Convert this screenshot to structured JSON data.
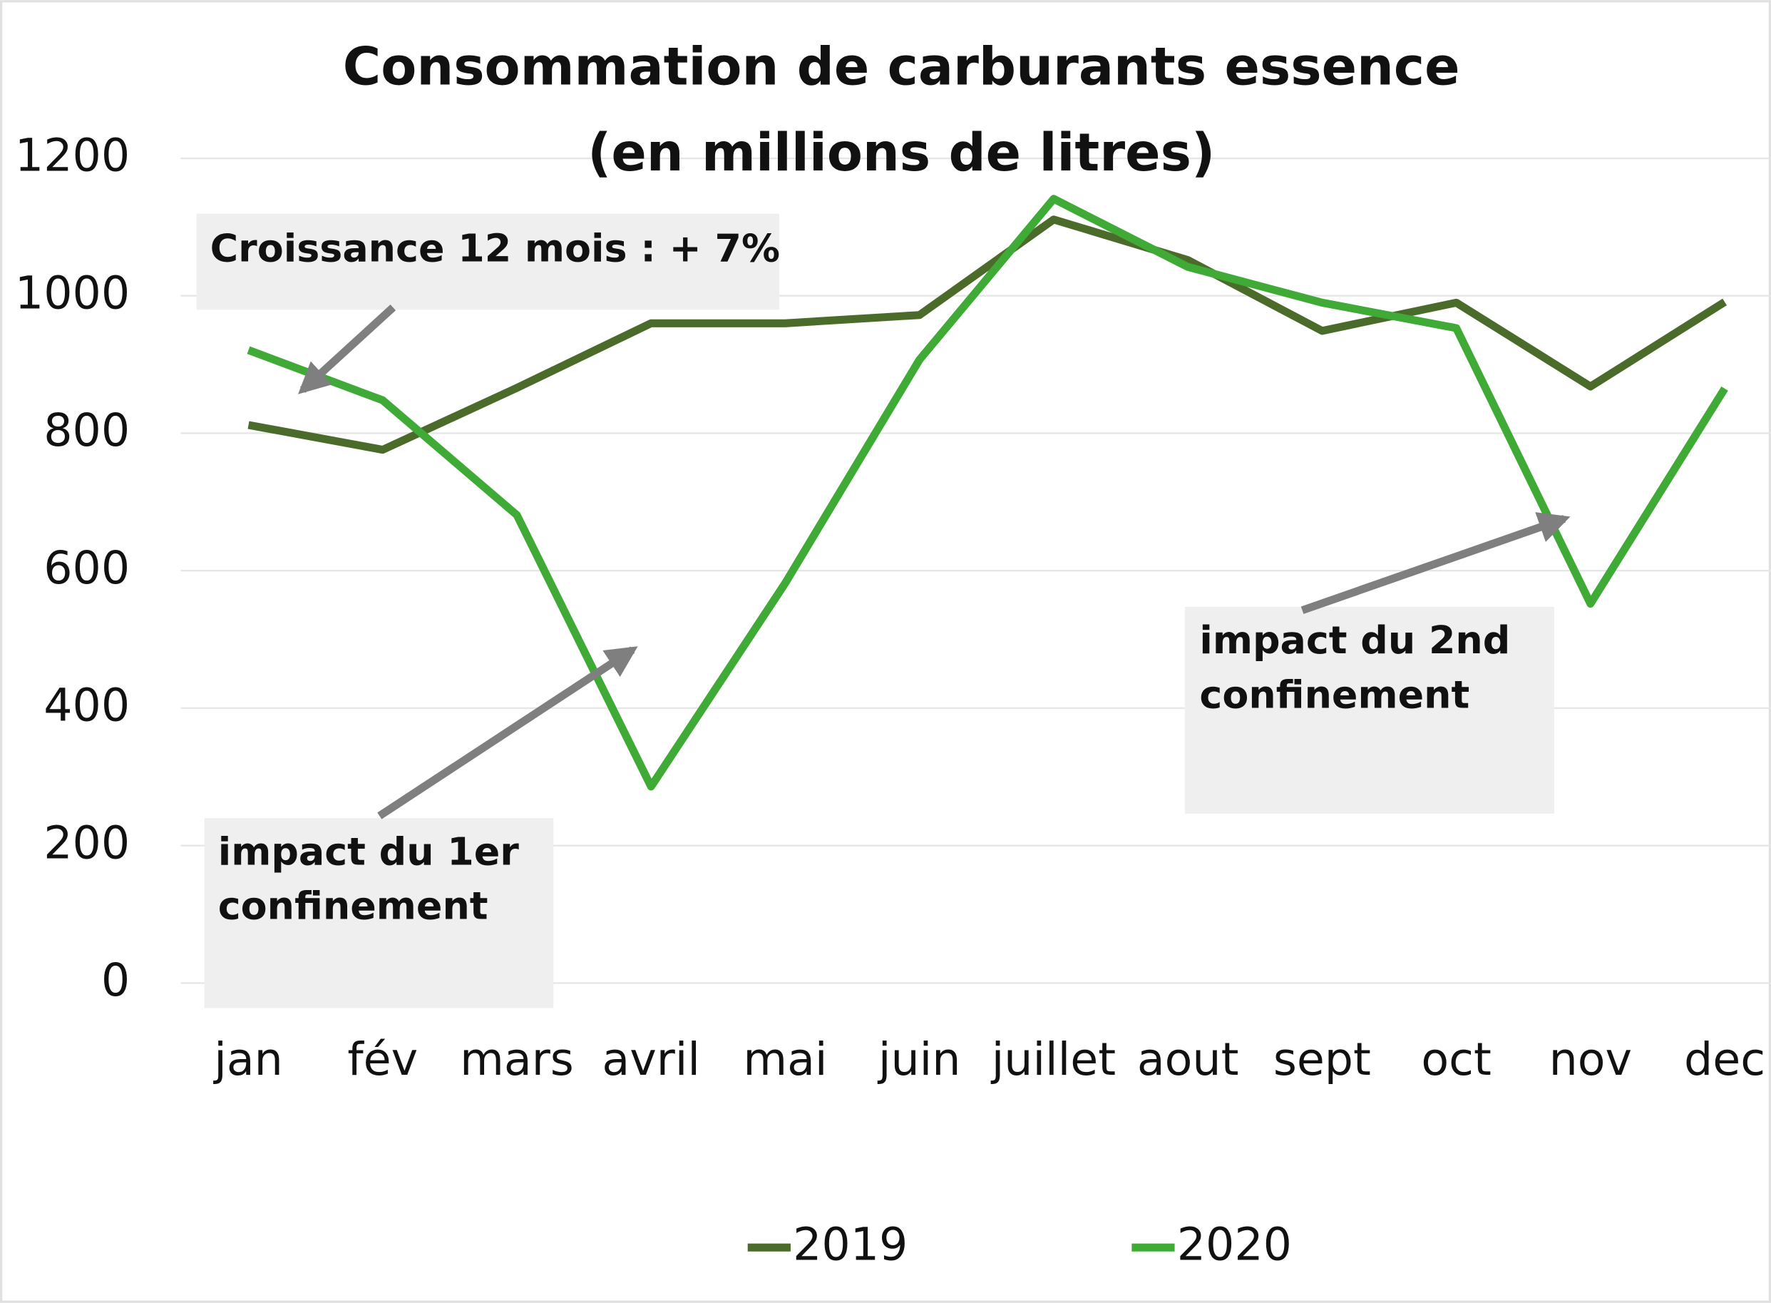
{
  "chart_data": {
    "type": "line",
    "title": "Consommation de carburants essence",
    "subtitle": "(en millions de litres)",
    "categories": [
      "jan",
      "fév",
      "mars",
      "avril",
      "mai",
      "juin",
      "juillet",
      "aout",
      "sept",
      "oct",
      "nov",
      "dec"
    ],
    "series": [
      {
        "name": "2019",
        "color": "#4a6b2a",
        "values": [
          812,
          776,
          866,
          960,
          960,
          972,
          1111,
          1052,
          949,
          990,
          868,
          991
        ]
      },
      {
        "name": "2020",
        "color": "#3faa35",
        "values": [
          921,
          848,
          681,
          286,
          582,
          907,
          1141,
          1042,
          990,
          953,
          552,
          865
        ]
      }
    ],
    "ylim": [
      0,
      1200
    ],
    "yticks": [
      0,
      200,
      400,
      600,
      800,
      1000,
      1200
    ],
    "grid": true,
    "legend": "bottom",
    "annotations": [
      {
        "text": [
          "Croissance 12 mois : + 7%"
        ]
      },
      {
        "text": [
          "impact du 1er",
          "confinement"
        ]
      },
      {
        "text": [
          "impact du 2nd",
          "confinement"
        ]
      }
    ]
  }
}
